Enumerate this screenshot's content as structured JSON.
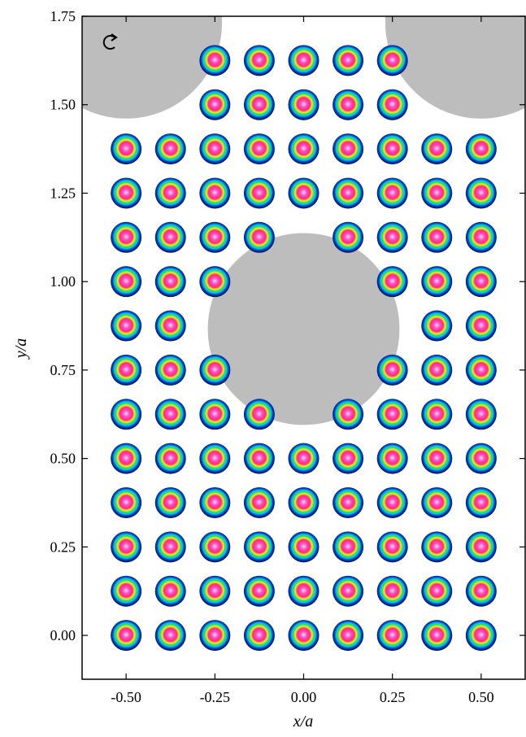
{
  "chart_data": {
    "type": "scatter",
    "x_label": "x/a",
    "y_label": "y/a",
    "xlim": [
      -0.624,
      0.624
    ],
    "ylim": [
      -0.124,
      1.75
    ],
    "xticks": [
      {
        "value": -0.5,
        "label": "-0.50"
      },
      {
        "value": -0.25,
        "label": "-0.25"
      },
      {
        "value": 0,
        "label": "0.00"
      },
      {
        "value": 0.25,
        "label": "0.25"
      },
      {
        "value": 0.5,
        "label": "0.50"
      }
    ],
    "yticks": [
      {
        "value": 0,
        "label": "0.00"
      },
      {
        "value": 0.25,
        "label": "0.25"
      },
      {
        "value": 0.5,
        "label": "0.50"
      },
      {
        "value": 0.75,
        "label": "0.75"
      },
      {
        "value": 1,
        "label": "1.00"
      },
      {
        "value": 1.25,
        "label": "1.25"
      },
      {
        "value": 1.5,
        "label": "1.50"
      },
      {
        "value": 1.75,
        "label": "1.75"
      }
    ],
    "holes": {
      "x": [
        0,
        -0.5,
        0.5
      ],
      "y": [
        0.866,
        1.732,
        1.732
      ],
      "r": [
        0.27,
        0.27,
        0.27
      ],
      "color": "#bdbdbd"
    },
    "rows": [
      {
        "y": 0,
        "x": [
          -0.5,
          -0.375,
          -0.25,
          -0.125,
          0,
          0.125,
          0.25,
          0.375,
          0.5
        ]
      },
      {
        "y": 0.125,
        "x": [
          -0.5,
          -0.375,
          -0.25,
          -0.125,
          0,
          0.125,
          0.25,
          0.375,
          0.5
        ]
      },
      {
        "y": 0.25,
        "x": [
          -0.5,
          -0.375,
          -0.25,
          -0.125,
          0,
          0.125,
          0.25,
          0.375,
          0.5
        ]
      },
      {
        "y": 0.375,
        "x": [
          -0.5,
          -0.375,
          -0.25,
          -0.125,
          0,
          0.125,
          0.25,
          0.375,
          0.5
        ]
      },
      {
        "y": 0.5,
        "x": [
          -0.5,
          -0.375,
          -0.25,
          -0.125,
          0,
          0.125,
          0.25,
          0.375,
          0.5
        ]
      },
      {
        "y": 0.625,
        "x": [
          -0.5,
          -0.375,
          -0.25,
          -0.125,
          0.125,
          0.25,
          0.375,
          0.5
        ]
      },
      {
        "y": 0.75,
        "x": [
          -0.5,
          -0.375,
          -0.25,
          0.25,
          0.375,
          0.5
        ]
      },
      {
        "y": 0.875,
        "x": [
          -0.5,
          -0.375,
          0.375,
          0.5
        ]
      },
      {
        "y": 1,
        "x": [
          -0.5,
          -0.375,
          -0.25,
          0.25,
          0.375,
          0.5
        ]
      },
      {
        "y": 1.125,
        "x": [
          -0.5,
          -0.375,
          -0.25,
          -0.125,
          0.125,
          0.25,
          0.375,
          0.5
        ]
      },
      {
        "y": 1.25,
        "x": [
          -0.5,
          -0.375,
          -0.25,
          -0.125,
          0,
          0.125,
          0.25,
          0.375,
          0.5
        ]
      },
      {
        "y": 1.375,
        "x": [
          -0.5,
          -0.375,
          -0.25,
          -0.125,
          0,
          0.125,
          0.25,
          0.375,
          0.5
        ]
      },
      {
        "y": 1.5,
        "x": [
          -0.25,
          -0.125,
          0,
          0.125,
          0.25
        ]
      },
      {
        "y": 1.625,
        "x": [
          -0.25,
          -0.125,
          0,
          0.125,
          0.25
        ]
      }
    ]
  }
}
